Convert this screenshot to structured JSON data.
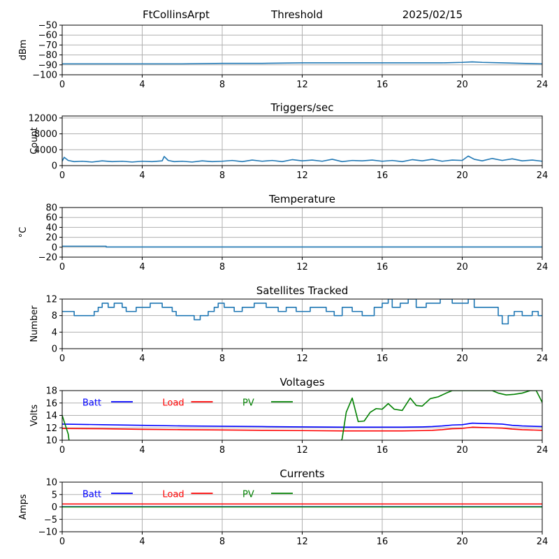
{
  "header": {
    "station": "FtCollinsArpt",
    "mode": "Threshold",
    "date": "2025/02/15"
  },
  "colors": {
    "series_default": "#1f77b4",
    "batt": "#0000ff",
    "load": "#ff0000",
    "pv": "#008000",
    "grid": "#b0b0b0"
  },
  "chart_data": [
    {
      "id": "noise",
      "type": "line",
      "title": "",
      "ylabel": "dBm",
      "xlim": [
        0,
        24
      ],
      "ylim": [
        -100,
        -50
      ],
      "xticks": [
        0,
        4,
        8,
        12,
        16,
        20,
        24
      ],
      "yticks": [
        -100,
        -90,
        -80,
        -70,
        -60,
        -50
      ],
      "series": [
        {
          "color": "#1f77b4",
          "x": [
            0,
            2,
            4,
            6,
            8,
            10,
            12,
            14,
            16,
            18,
            19,
            20,
            20.5,
            21,
            22,
            23,
            24
          ],
          "y": [
            -89,
            -89,
            -89,
            -89,
            -88.5,
            -88.5,
            -88,
            -88,
            -88,
            -88,
            -88,
            -87.5,
            -87,
            -87.5,
            -88,
            -88.5,
            -89
          ]
        }
      ]
    },
    {
      "id": "triggers",
      "type": "line",
      "title": "Triggers/sec",
      "ylabel": "Count",
      "xlim": [
        0,
        24
      ],
      "ylim": [
        0,
        12500
      ],
      "xticks": [
        0,
        4,
        8,
        12,
        16,
        20,
        24
      ],
      "yticks": [
        0,
        4000,
        8000,
        12000
      ],
      "series": [
        {
          "color": "#1f77b4",
          "x": [
            0,
            0.1,
            0.3,
            0.6,
            1,
            1.5,
            2,
            2.5,
            3,
            3.5,
            4,
            4.5,
            5,
            5.1,
            5.3,
            5.6,
            6,
            6.5,
            7,
            7.5,
            8,
            8.5,
            9,
            9.5,
            10,
            10.5,
            11,
            11.5,
            12,
            12.5,
            13,
            13.5,
            14,
            14.5,
            15,
            15.5,
            16,
            16.5,
            17,
            17.5,
            18,
            18.5,
            19,
            19.5,
            20,
            20.3,
            20.6,
            21,
            21.5,
            22,
            22.5,
            23,
            23.5,
            24
          ],
          "y": [
            1100,
            2100,
            1300,
            1000,
            1100,
            900,
            1200,
            1000,
            1100,
            900,
            1100,
            1000,
            1200,
            2300,
            1300,
            1000,
            1100,
            900,
            1200,
            1000,
            1100,
            1300,
            1000,
            1400,
            1100,
            1300,
            1000,
            1500,
            1200,
            1400,
            1100,
            1600,
            1000,
            1300,
            1200,
            1400,
            1100,
            1300,
            1000,
            1500,
            1200,
            1600,
            1100,
            1400,
            1300,
            2400,
            1600,
            1200,
            1800,
            1300,
            1700,
            1200,
            1400,
            1100
          ]
        }
      ]
    },
    {
      "id": "temperature",
      "type": "line",
      "title": "Temperature",
      "ylabel": "°C",
      "xlim": [
        0,
        24
      ],
      "ylim": [
        -20,
        80
      ],
      "xticks": [
        0,
        4,
        8,
        12,
        16,
        20,
        24
      ],
      "yticks": [
        -20,
        0,
        20,
        40,
        60,
        80
      ],
      "series": [
        {
          "color": "#1f77b4",
          "x": [
            0,
            2.2,
            2.2,
            24
          ],
          "y": [
            2,
            2,
            0.5,
            0.5
          ]
        }
      ]
    },
    {
      "id": "satellites",
      "type": "line",
      "title": "Satellites Tracked",
      "ylabel": "Number",
      "xlim": [
        0,
        24
      ],
      "ylim": [
        0,
        12
      ],
      "xticks": [
        0,
        4,
        8,
        12,
        16,
        20,
        24
      ],
      "yticks": [
        0,
        4,
        8,
        12
      ],
      "series": [
        {
          "color": "#1f77b4",
          "x": [
            0,
            0.6,
            0.6,
            1.6,
            1.6,
            1.8,
            1.8,
            2,
            2,
            2.3,
            2.3,
            2.6,
            2.6,
            3,
            3,
            3.2,
            3.2,
            3.7,
            3.7,
            4.4,
            4.4,
            5,
            5,
            5.5,
            5.5,
            5.7,
            5.7,
            6.6,
            6.6,
            6.9,
            6.9,
            7.3,
            7.3,
            7.6,
            7.6,
            7.8,
            7.8,
            8.1,
            8.1,
            8.6,
            8.6,
            9,
            9,
            9.6,
            9.6,
            10.2,
            10.2,
            10.8,
            10.8,
            11.2,
            11.2,
            11.7,
            11.7,
            12.4,
            12.4,
            13.2,
            13.2,
            13.6,
            13.6,
            14,
            14,
            14.5,
            14.5,
            15,
            15,
            15.6,
            15.6,
            16,
            16,
            16.3,
            16.3,
            16.5,
            16.5,
            16.9,
            16.9,
            17.3,
            17.3,
            17.7,
            17.7,
            18.2,
            18.2,
            18.9,
            18.9,
            19.5,
            19.5,
            20.3,
            20.3,
            20.6,
            20.6,
            21.8,
            21.8,
            22,
            22,
            22.3,
            22.3,
            22.6,
            22.6,
            23,
            23,
            23.5,
            23.5,
            23.8,
            23.8,
            24
          ],
          "y": [
            9,
            9,
            8,
            8,
            9,
            9,
            10,
            10,
            11,
            11,
            10,
            10,
            11,
            11,
            10,
            10,
            9,
            9,
            10,
            10,
            11,
            11,
            10,
            10,
            9,
            9,
            8,
            8,
            7,
            7,
            8,
            8,
            9,
            9,
            10,
            10,
            11,
            11,
            10,
            10,
            9,
            9,
            10,
            10,
            11,
            11,
            10,
            10,
            9,
            9,
            10,
            10,
            9,
            9,
            10,
            10,
            9,
            9,
            8,
            8,
            10,
            10,
            9,
            9,
            8,
            8,
            10,
            10,
            11,
            11,
            12,
            12,
            10,
            10,
            11,
            11,
            12,
            12,
            10,
            10,
            11,
            11,
            12,
            12,
            11,
            11,
            12,
            12,
            10,
            10,
            8,
            8,
            6,
            6,
            8,
            8,
            9,
            9,
            8,
            8,
            9,
            9,
            8,
            8
          ]
        }
      ]
    },
    {
      "id": "voltages",
      "type": "line",
      "title": "Voltages",
      "ylabel": "Volts",
      "xlim": [
        0,
        24
      ],
      "ylim": [
        10,
        18
      ],
      "xticks": [
        0,
        4,
        8,
        12,
        16,
        20,
        24
      ],
      "yticks": [
        10,
        12,
        14,
        16,
        18
      ],
      "legend": "top-left",
      "series": [
        {
          "name": "Batt",
          "color": "#0000ff",
          "x": [
            0,
            2,
            4,
            6,
            8,
            10,
            12,
            14,
            16,
            17,
            18,
            18.5,
            19,
            19.5,
            20,
            20.5,
            21,
            21.5,
            22,
            22.5,
            23,
            24
          ],
          "y": [
            12.6,
            12.5,
            12.4,
            12.3,
            12.25,
            12.2,
            12.15,
            12.1,
            12.1,
            12.1,
            12.15,
            12.2,
            12.3,
            12.45,
            12.5,
            12.75,
            12.7,
            12.65,
            12.6,
            12.4,
            12.3,
            12.2
          ]
        },
        {
          "name": "Load",
          "color": "#ff0000",
          "x": [
            0,
            2,
            4,
            6,
            8,
            10,
            12,
            14,
            16,
            17,
            18,
            18.5,
            19,
            19.5,
            20,
            20.5,
            21,
            21.5,
            22,
            22.5,
            23,
            24
          ],
          "y": [
            11.9,
            11.85,
            11.75,
            11.7,
            11.65,
            11.6,
            11.55,
            11.5,
            11.5,
            11.5,
            11.55,
            11.6,
            11.7,
            11.85,
            11.9,
            12.1,
            12.05,
            12.0,
            11.95,
            11.8,
            11.7,
            11.6
          ]
        },
        {
          "name": "PV",
          "color": "#008000",
          "x": [
            0,
            0.15,
            0.3,
            0.35,
            13.95,
            14.0,
            14.2,
            14.5,
            14.8,
            15.1,
            15.4,
            15.7,
            16.0,
            16.3,
            16.6,
            17.0,
            17.4,
            17.7,
            18.0,
            18.4,
            18.8,
            19.2,
            19.5,
            21.5,
            21.8,
            22.2,
            22.6,
            23.0,
            23.4,
            23.7,
            24.0
          ],
          "y": [
            14.0,
            12.5,
            11.0,
            9.8,
            9.8,
            10.3,
            14.5,
            16.8,
            13.0,
            13.1,
            14.5,
            15.1,
            15.0,
            15.9,
            15.0,
            14.8,
            16.8,
            15.6,
            15.5,
            16.7,
            17.0,
            17.6,
            18.0,
            18.0,
            17.6,
            17.3,
            17.4,
            17.6,
            18.0,
            18.0,
            16.1
          ]
        }
      ]
    },
    {
      "id": "currents",
      "type": "line",
      "title": "Currents",
      "ylabel": "Amps",
      "xlim": [
        0,
        24
      ],
      "ylim": [
        -10,
        10
      ],
      "xticks": [
        0,
        4,
        8,
        12,
        16,
        20,
        24
      ],
      "yticks": [
        -10,
        -5,
        0,
        5,
        10
      ],
      "legend": "top-left",
      "series": [
        {
          "name": "Batt",
          "color": "#0000ff",
          "x": [
            0,
            24
          ],
          "y": [
            0.1,
            0.1
          ]
        },
        {
          "name": "Load",
          "color": "#ff0000",
          "x": [
            0,
            24
          ],
          "y": [
            1.2,
            1.2
          ]
        },
        {
          "name": "PV",
          "color": "#008000",
          "x": [
            0,
            24
          ],
          "y": [
            0,
            0
          ]
        }
      ]
    }
  ]
}
